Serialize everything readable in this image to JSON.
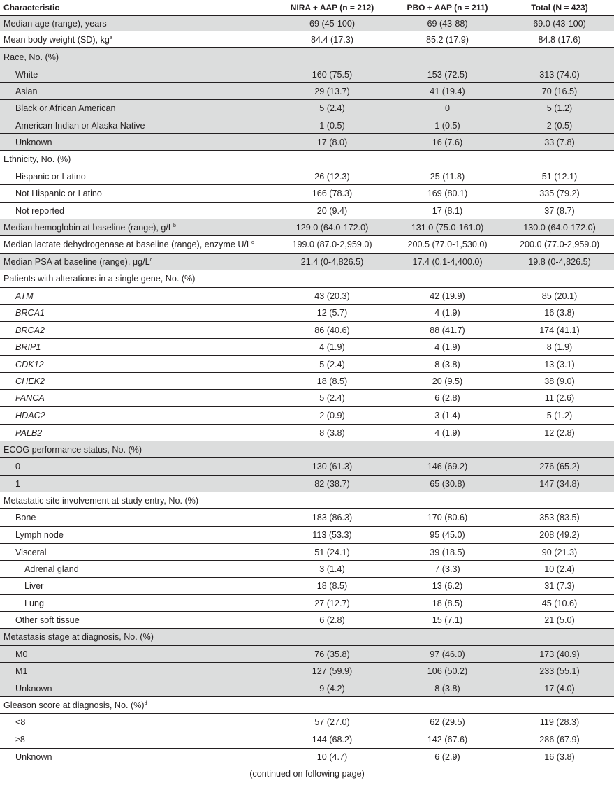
{
  "table": {
    "headers": [
      "Characteristic",
      "NIRA + AAP (n = 212)",
      "PBO + AAP (n = 211)",
      "Total (N = 423)"
    ],
    "rows": [
      {
        "label": "Median age (range), years",
        "v": [
          "69 (45-100)",
          "69 (43-88)",
          "69.0 (43-100)"
        ],
        "indent": 0,
        "shade": true
      },
      {
        "label": "Mean body weight (SD), kg",
        "sup": "a",
        "v": [
          "84.4 (17.3)",
          "85.2 (17.9)",
          "84.8 (17.6)"
        ],
        "indent": 0,
        "shade": false
      },
      {
        "label": "Race, No. (%)",
        "v": [
          "",
          "",
          ""
        ],
        "indent": 0,
        "shade": true
      },
      {
        "label": "White",
        "v": [
          "160 (75.5)",
          "153 (72.5)",
          "313 (74.0)"
        ],
        "indent": 1,
        "shade": true
      },
      {
        "label": "Asian",
        "v": [
          "29 (13.7)",
          "41 (19.4)",
          "70 (16.5)"
        ],
        "indent": 1,
        "shade": true
      },
      {
        "label": "Black or African American",
        "v": [
          "5 (2.4)",
          "0",
          "5 (1.2)"
        ],
        "indent": 1,
        "shade": true
      },
      {
        "label": "American Indian or Alaska Native",
        "v": [
          "1 (0.5)",
          "1 (0.5)",
          "2 (0.5)"
        ],
        "indent": 1,
        "shade": true
      },
      {
        "label": "Unknown",
        "v": [
          "17 (8.0)",
          "16 (7.6)",
          "33 (7.8)"
        ],
        "indent": 1,
        "shade": true
      },
      {
        "label": "Ethnicity, No. (%)",
        "v": [
          "",
          "",
          ""
        ],
        "indent": 0,
        "shade": false
      },
      {
        "label": "Hispanic or Latino",
        "v": [
          "26 (12.3)",
          "25 (11.8)",
          "51 (12.1)"
        ],
        "indent": 1,
        "shade": false
      },
      {
        "label": "Not Hispanic or Latino",
        "v": [
          "166 (78.3)",
          "169 (80.1)",
          "335 (79.2)"
        ],
        "indent": 1,
        "shade": false
      },
      {
        "label": "Not reported",
        "v": [
          "20 (9.4)",
          "17 (8.1)",
          "37 (8.7)"
        ],
        "indent": 1,
        "shade": false
      },
      {
        "label": "Median hemoglobin at baseline (range), g/L",
        "sup": "b",
        "v": [
          "129.0 (64.0-172.0)",
          "131.0 (75.0-161.0)",
          "130.0 (64.0-172.0)"
        ],
        "indent": 0,
        "shade": true
      },
      {
        "label": "Median lactate dehydrogenase at baseline (range), enzyme U/L",
        "sup": "c",
        "v": [
          "199.0 (87.0-2,959.0)",
          "200.5 (77.0-1,530.0)",
          "200.0 (77.0-2,959.0)"
        ],
        "indent": 0,
        "shade": false
      },
      {
        "label": "Median PSA at baseline (range), μg/L",
        "sup": "c",
        "v": [
          "21.4 (0-4,826.5)",
          "17.4 (0.1-4,400.0)",
          "19.8 (0-4,826.5)"
        ],
        "indent": 0,
        "shade": true
      },
      {
        "label": "Patients with alterations in a single gene, No. (%)",
        "v": [
          "",
          "",
          ""
        ],
        "indent": 0,
        "shade": false
      },
      {
        "label": "ATM",
        "v": [
          "43 (20.3)",
          "42 (19.9)",
          "85 (20.1)"
        ],
        "indent": 1,
        "shade": false,
        "gene": true
      },
      {
        "label": "BRCA1",
        "v": [
          "12 (5.7)",
          "4 (1.9)",
          "16 (3.8)"
        ],
        "indent": 1,
        "shade": false,
        "gene": true
      },
      {
        "label": "BRCA2",
        "v": [
          "86 (40.6)",
          "88 (41.7)",
          "174 (41.1)"
        ],
        "indent": 1,
        "shade": false,
        "gene": true
      },
      {
        "label": "BRIP1",
        "v": [
          "4 (1.9)",
          "4 (1.9)",
          "8 (1.9)"
        ],
        "indent": 1,
        "shade": false,
        "gene": true
      },
      {
        "label": "CDK12",
        "v": [
          "5 (2.4)",
          "8 (3.8)",
          "13 (3.1)"
        ],
        "indent": 1,
        "shade": false,
        "gene": true
      },
      {
        "label": "CHEK2",
        "v": [
          "18 (8.5)",
          "20 (9.5)",
          "38 (9.0)"
        ],
        "indent": 1,
        "shade": false,
        "gene": true
      },
      {
        "label": "FANCA",
        "v": [
          "5 (2.4)",
          "6 (2.8)",
          "11 (2.6)"
        ],
        "indent": 1,
        "shade": false,
        "gene": true
      },
      {
        "label": "HDAC2",
        "v": [
          "2 (0.9)",
          "3 (1.4)",
          "5 (1.2)"
        ],
        "indent": 1,
        "shade": false,
        "gene": true
      },
      {
        "label": "PALB2",
        "v": [
          "8 (3.8)",
          "4 (1.9)",
          "12 (2.8)"
        ],
        "indent": 1,
        "shade": false,
        "gene": true
      },
      {
        "label": "ECOG performance status, No. (%)",
        "v": [
          "",
          "",
          ""
        ],
        "indent": 0,
        "shade": true
      },
      {
        "label": "0",
        "v": [
          "130 (61.3)",
          "146 (69.2)",
          "276 (65.2)"
        ],
        "indent": 1,
        "shade": true
      },
      {
        "label": "1",
        "v": [
          "82 (38.7)",
          "65 (30.8)",
          "147 (34.8)"
        ],
        "indent": 1,
        "shade": true
      },
      {
        "label": "Metastatic site involvement at study entry, No. (%)",
        "v": [
          "",
          "",
          ""
        ],
        "indent": 0,
        "shade": false
      },
      {
        "label": "Bone",
        "v": [
          "183 (86.3)",
          "170 (80.6)",
          "353 (83.5)"
        ],
        "indent": 1,
        "shade": false
      },
      {
        "label": "Lymph node",
        "v": [
          "113 (53.3)",
          "95 (45.0)",
          "208 (49.2)"
        ],
        "indent": 1,
        "shade": false
      },
      {
        "label": "Visceral",
        "v": [
          "51 (24.1)",
          "39 (18.5)",
          "90 (21.3)"
        ],
        "indent": 1,
        "shade": false
      },
      {
        "label": "Adrenal gland",
        "v": [
          "3 (1.4)",
          "7 (3.3)",
          "10 (2.4)"
        ],
        "indent": 2,
        "shade": false
      },
      {
        "label": "Liver",
        "v": [
          "18 (8.5)",
          "13 (6.2)",
          "31 (7.3)"
        ],
        "indent": 2,
        "shade": false
      },
      {
        "label": "Lung",
        "v": [
          "27 (12.7)",
          "18 (8.5)",
          "45 (10.6)"
        ],
        "indent": 2,
        "shade": false
      },
      {
        "label": "Other soft tissue",
        "v": [
          "6 (2.8)",
          "15 (7.1)",
          "21 (5.0)"
        ],
        "indent": 1,
        "shade": false
      },
      {
        "label": "Metastasis stage at diagnosis, No. (%)",
        "v": [
          "",
          "",
          ""
        ],
        "indent": 0,
        "shade": true
      },
      {
        "label": "M0",
        "v": [
          "76 (35.8)",
          "97 (46.0)",
          "173 (40.9)"
        ],
        "indent": 1,
        "shade": true
      },
      {
        "label": "M1",
        "v": [
          "127 (59.9)",
          "106 (50.2)",
          "233 (55.1)"
        ],
        "indent": 1,
        "shade": true
      },
      {
        "label": "Unknown",
        "v": [
          "9 (4.2)",
          "8 (3.8)",
          "17 (4.0)"
        ],
        "indent": 1,
        "shade": true
      },
      {
        "label": "Gleason score at diagnosis, No. (%)",
        "sup": "d",
        "v": [
          "",
          "",
          ""
        ],
        "indent": 0,
        "shade": false
      },
      {
        "label": "<8",
        "v": [
          "57 (27.0)",
          "62 (29.5)",
          "119 (28.3)"
        ],
        "indent": 1,
        "shade": false
      },
      {
        "label": "≥8",
        "v": [
          "144 (68.2)",
          "142 (67.6)",
          "286 (67.9)"
        ],
        "indent": 1,
        "shade": false
      },
      {
        "label": "Unknown",
        "v": [
          "10 (4.7)",
          "6 (2.9)",
          "16 (3.8)"
        ],
        "indent": 1,
        "shade": false
      }
    ],
    "footer": "(continued on following page)"
  }
}
